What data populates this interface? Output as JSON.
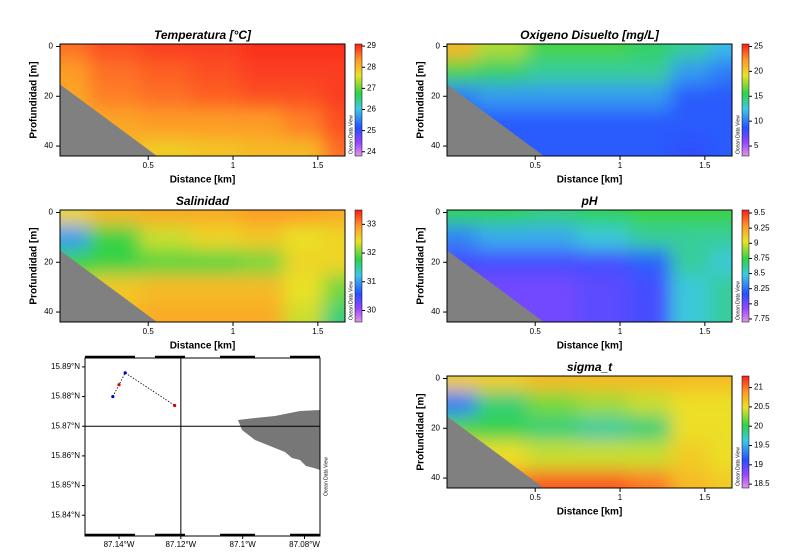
{
  "chart_data": [
    {
      "type": "heatmap",
      "title": "Temperatura [°C]",
      "xlabel": "Distance [km]",
      "ylabel": "Profundidad [m]",
      "watermark": "Ocean Data View",
      "xlim": [
        -0.02,
        1.66
      ],
      "xticks": [
        0.5,
        1,
        1.5
      ],
      "ylim": [
        44,
        -1
      ],
      "yticks": [
        0,
        20,
        40
      ],
      "zlim": [
        23.8,
        29.1
      ],
      "zticks": [
        24,
        25,
        26,
        27,
        28,
        29
      ],
      "x": [
        0,
        0.3,
        0.6,
        0.9,
        1.2,
        1.4,
        1.66
      ],
      "depth": [
        0,
        10,
        20,
        30,
        44
      ],
      "z": [
        [
          28.6,
          28.8,
          28.9,
          28.9,
          29,
          29,
          29
        ],
        [
          28.3,
          28.6,
          28.7,
          28.8,
          28.9,
          28.9,
          28.9
        ],
        [
          28.2,
          28.5,
          28.6,
          28.7,
          28.8,
          28.8,
          28.9
        ],
        [
          28.0,
          28.2,
          28.3,
          28.3,
          28.3,
          28.5,
          28.8
        ],
        [
          28,
          28,
          27.8,
          27.9,
          28,
          28,
          28.6
        ]
      ]
    },
    {
      "type": "heatmap",
      "title": "Oxigeno Disuelto [mg/L]",
      "xlabel": "Distance [km]",
      "ylabel": "Profundidad [m]",
      "watermark": "Ocean Data View",
      "xlim": [
        -0.02,
        1.66
      ],
      "xticks": [
        0.5,
        1,
        1.5
      ],
      "ylim": [
        44,
        -1
      ],
      "yticks": [
        0,
        20,
        40
      ],
      "zlim": [
        3,
        25.5
      ],
      "zticks": [
        5,
        10,
        15,
        20,
        25
      ],
      "x": [
        0,
        0.3,
        0.6,
        0.9,
        1.2,
        1.4,
        1.66
      ],
      "depth": [
        0,
        10,
        20,
        30,
        44
      ],
      "z": [
        [
          21,
          18,
          16,
          16,
          15,
          14,
          12
        ],
        [
          16,
          15,
          14,
          14,
          14,
          11,
          10
        ],
        [
          10,
          11,
          11,
          11,
          11,
          9,
          9
        ],
        [
          9,
          9,
          9,
          9,
          9,
          9,
          9
        ],
        [
          9,
          9,
          9,
          9,
          9,
          8.5,
          9
        ]
      ]
    },
    {
      "type": "heatmap",
      "title": "Salinidad",
      "xlabel": "Distance [km]",
      "ylabel": "Profundidad [m]",
      "watermark": "Ocean Data View",
      "xlim": [
        -0.02,
        1.66
      ],
      "xticks": [
        0.5,
        1,
        1.5
      ],
      "ylim": [
        44,
        -1
      ],
      "yticks": [
        0,
        20,
        40
      ],
      "zlim": [
        29.6,
        33.5
      ],
      "zticks": [
        30,
        31,
        32,
        33
      ],
      "x": [
        0,
        0.3,
        0.6,
        0.9,
        1.2,
        1.4,
        1.66
      ],
      "depth": [
        0,
        10,
        20,
        30,
        44
      ],
      "z": [
        [
          32.5,
          32.7,
          32.8,
          32.8,
          32.9,
          32.9,
          32.8
        ],
        [
          31.0,
          31.8,
          32.3,
          32.5,
          32.6,
          32.4,
          32.5
        ],
        [
          31.8,
          31.8,
          31.9,
          31.9,
          32.0,
          32.5,
          32.5
        ],
        [
          32.2,
          32.6,
          32.7,
          32.7,
          32.7,
          32.4,
          32.0
        ],
        [
          32.5,
          32.7,
          32.8,
          32.8,
          32.8,
          32.3,
          31.6
        ]
      ]
    },
    {
      "type": "heatmap",
      "title": "pH",
      "xlabel": "Distance [km]",
      "ylabel": "Profundidad [m]",
      "watermark": "Ocean Data View",
      "xlim": [
        -0.02,
        1.66
      ],
      "xticks": [
        0.5,
        1,
        1.5
      ],
      "ylim": [
        44,
        -1
      ],
      "yticks": [
        0,
        20,
        40
      ],
      "zlim": [
        7.7,
        9.55
      ],
      "zticks": [
        7.75,
        8,
        8.25,
        8.5,
        8.75,
        9,
        9.25,
        9.5
      ],
      "x": [
        0,
        0.3,
        0.6,
        0.9,
        1.2,
        1.4,
        1.66
      ],
      "depth": [
        0,
        10,
        20,
        30,
        44
      ],
      "z": [
        [
          8.7,
          8.7,
          8.65,
          8.7,
          8.75,
          8.75,
          8.75
        ],
        [
          8.3,
          8.4,
          8.4,
          8.5,
          8.6,
          8.6,
          8.6
        ],
        [
          8.1,
          8.1,
          8.1,
          8.1,
          8.2,
          8.6,
          8.5
        ],
        [
          8.0,
          8.0,
          8.0,
          8.05,
          8.1,
          8.5,
          8.6
        ],
        [
          8.0,
          8.0,
          8.0,
          8.05,
          8.1,
          8.5,
          8.6
        ]
      ]
    },
    {
      "type": "heatmap",
      "title": "sigma_t",
      "xlabel": "Distance [km]",
      "ylabel": "Profundidad [m]",
      "watermark": "Ocean Data View",
      "xlim": [
        -0.02,
        1.66
      ],
      "xticks": [
        0.5,
        1,
        1.5
      ],
      "ylim": [
        44,
        -1
      ],
      "yticks": [
        0,
        20,
        40
      ],
      "zlim": [
        18.4,
        21.3
      ],
      "zticks": [
        18.5,
        19,
        19.5,
        20,
        20.5,
        21
      ],
      "x": [
        0,
        0.3,
        0.6,
        0.9,
        1.2,
        1.4,
        1.66
      ],
      "depth": [
        0,
        10,
        20,
        30,
        44
      ],
      "z": [
        [
          20.6,
          20.6,
          20.7,
          20.7,
          20.7,
          20.7,
          20.7
        ],
        [
          19.3,
          19.9,
          20.2,
          20.3,
          20.4,
          20.5,
          20.5
        ],
        [
          20.1,
          20.0,
          19.9,
          19.8,
          19.9,
          20.5,
          20.5
        ],
        [
          20.6,
          20.5,
          20.4,
          20.4,
          20.4,
          20.6,
          20.5
        ],
        [
          21,
          21,
          21.1,
          21.1,
          21,
          20.7,
          20.6
        ]
      ]
    },
    {
      "type": "map",
      "watermark": "Ocean Data View",
      "xlim": [
        -87.151,
        -87.075
      ],
      "ylim": [
        15.833,
        15.893
      ],
      "xticks": [
        {
          "value": -87.14,
          "label": "87.14°W"
        },
        {
          "value": -87.12,
          "label": "87.12°W"
        },
        {
          "value": -87.1,
          "label": "87.1°W"
        },
        {
          "value": -87.08,
          "label": "87.08°W"
        }
      ],
      "yticks": [
        {
          "value": 15.84,
          "label": "15.84°N"
        },
        {
          "value": 15.85,
          "label": "15.85°N"
        },
        {
          "value": 15.86,
          "label": "15.86°N"
        },
        {
          "value": 15.87,
          "label": "15.87°N"
        },
        {
          "value": 15.88,
          "label": "15.88°N"
        },
        {
          "value": 15.89,
          "label": "15.89°N"
        }
      ],
      "crosshair": {
        "lon": -87.12,
        "lat": 15.87
      },
      "track": {
        "lon": [
          -87.142,
          -87.14,
          -87.138,
          -87.122
        ],
        "lat": [
          15.88,
          15.884,
          15.888,
          15.877
        ]
      }
    }
  ]
}
